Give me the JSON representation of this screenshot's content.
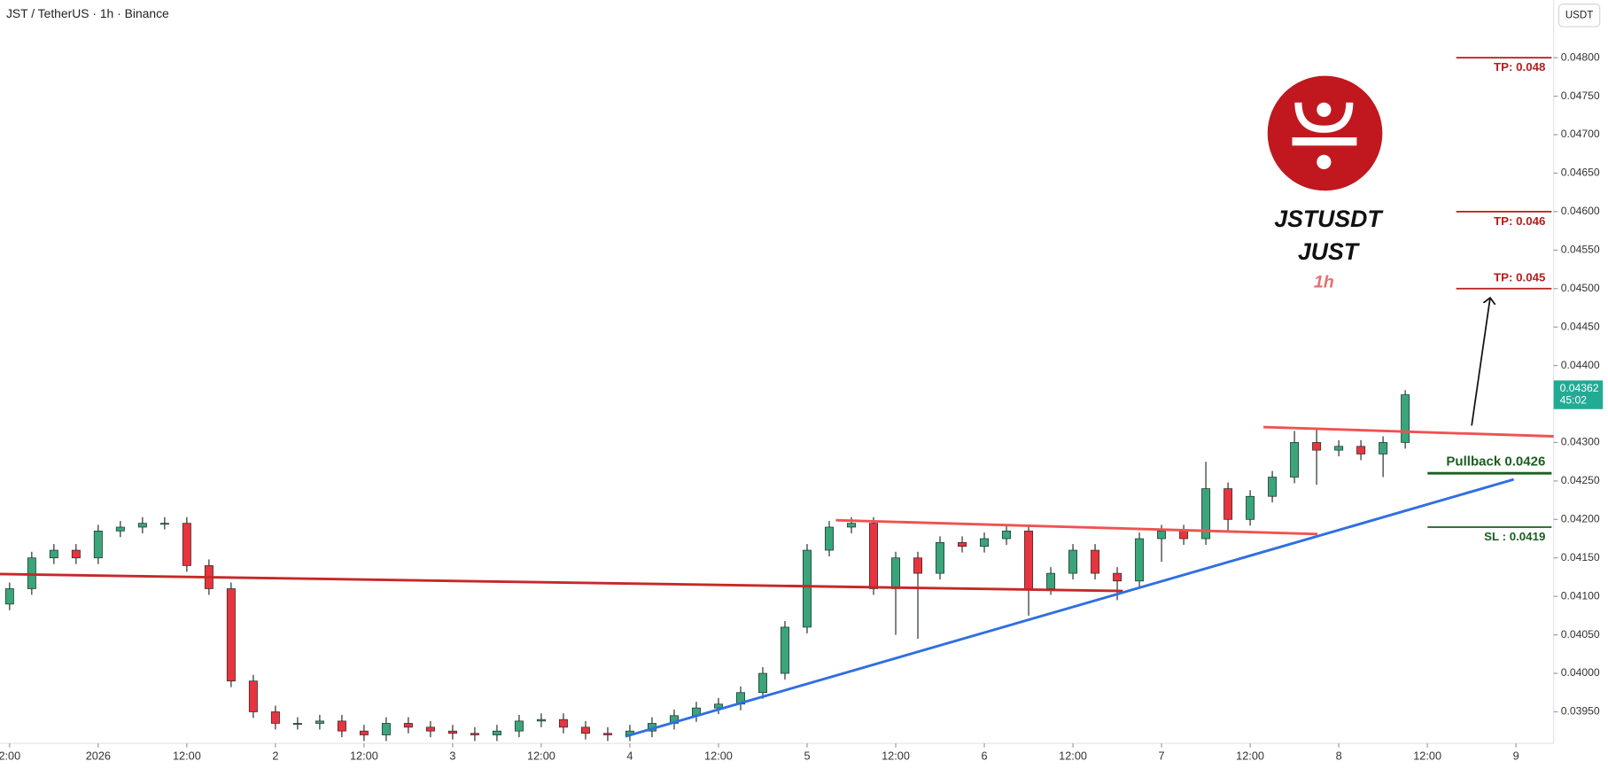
{
  "chart_data": {
    "type": "candlestick",
    "title": "JST / TetherUS · 1h · Binance",
    "currency_button": "USDT",
    "up_color": "#3aa57a",
    "down_color": "#e8343f",
    "candles": {
      "x": [
        -12,
        -9,
        -6,
        -3,
        0,
        3,
        6,
        9,
        12,
        15,
        18,
        21,
        24,
        27,
        30,
        33,
        36,
        39,
        42,
        45,
        48,
        51,
        54,
        57,
        60,
        63,
        66,
        69,
        72,
        75,
        78,
        81,
        84,
        87,
        90,
        93,
        96,
        99,
        102,
        105,
        108,
        111,
        114,
        117,
        120,
        123,
        126,
        129,
        132,
        135,
        138,
        141,
        144,
        147,
        150,
        153,
        156,
        159,
        162,
        165,
        168,
        171,
        174,
        177
      ],
      "open": [
        0.0409,
        0.0411,
        0.0415,
        0.0416,
        0.0415,
        0.04185,
        0.0419,
        0.04195,
        0.04195,
        0.0414,
        0.0411,
        0.0399,
        0.0395,
        0.03935,
        0.03935,
        0.03938,
        0.03925,
        0.0392,
        0.03935,
        0.0393,
        0.03925,
        0.03922,
        0.0392,
        0.03925,
        0.03938,
        0.0394,
        0.0393,
        0.03922,
        0.0392,
        0.03925,
        0.03935,
        0.03945,
        0.03955,
        0.0396,
        0.03975,
        0.04,
        0.0406,
        0.0416,
        0.0419,
        0.04195,
        0.0411,
        0.0415,
        0.0413,
        0.0417,
        0.04165,
        0.04175,
        0.04185,
        0.0411,
        0.0413,
        0.0416,
        0.0413,
        0.0412,
        0.04175,
        0.04185,
        0.04175,
        0.0424,
        0.042,
        0.0423,
        0.04255,
        0.043,
        0.0429,
        0.04295,
        0.04285,
        0.043
      ],
      "high": [
        0.04118,
        0.04158,
        0.04168,
        0.04168,
        0.04193,
        0.04198,
        0.04203,
        0.04203,
        0.04203,
        0.04148,
        0.04118,
        0.03998,
        0.03958,
        0.03943,
        0.03946,
        0.03946,
        0.03933,
        0.03943,
        0.03943,
        0.03938,
        0.03933,
        0.0393,
        0.03933,
        0.03946,
        0.03948,
        0.03948,
        0.03938,
        0.0393,
        0.03933,
        0.03943,
        0.03953,
        0.03963,
        0.03968,
        0.03983,
        0.04008,
        0.04068,
        0.04168,
        0.04198,
        0.04203,
        0.04203,
        0.04158,
        0.04158,
        0.04178,
        0.04178,
        0.04183,
        0.04193,
        0.04193,
        0.04138,
        0.04168,
        0.04168,
        0.04138,
        0.04183,
        0.04193,
        0.04193,
        0.04275,
        0.04248,
        0.04238,
        0.04263,
        0.04315,
        0.04318,
        0.04303,
        0.04303,
        0.04308,
        0.04368
      ],
      "low": [
        0.04082,
        0.04102,
        0.04142,
        0.04142,
        0.04142,
        0.04177,
        0.04182,
        0.04187,
        0.04132,
        0.04102,
        0.03982,
        0.03942,
        0.03927,
        0.03927,
        0.03927,
        0.03917,
        0.03912,
        0.03912,
        0.03922,
        0.03917,
        0.03914,
        0.03912,
        0.03912,
        0.03917,
        0.0393,
        0.03922,
        0.03914,
        0.03912,
        0.03912,
        0.03917,
        0.03927,
        0.03937,
        0.03947,
        0.03952,
        0.03967,
        0.03992,
        0.04052,
        0.04152,
        0.04182,
        0.04102,
        0.0405,
        0.04045,
        0.04122,
        0.04157,
        0.04157,
        0.04167,
        0.04075,
        0.04102,
        0.04122,
        0.04122,
        0.04095,
        0.04112,
        0.04145,
        0.04167,
        0.04167,
        0.04185,
        0.04192,
        0.04222,
        0.04247,
        0.04245,
        0.04282,
        0.04277,
        0.04255,
        0.04292
      ],
      "close": [
        0.0411,
        0.0415,
        0.0416,
        0.0415,
        0.04185,
        0.0419,
        0.04195,
        0.04195,
        0.0414,
        0.0411,
        0.0399,
        0.0395,
        0.03935,
        0.03935,
        0.03938,
        0.03925,
        0.0392,
        0.03935,
        0.0393,
        0.03925,
        0.03922,
        0.0392,
        0.03925,
        0.03938,
        0.0394,
        0.0393,
        0.03922,
        0.0392,
        0.03925,
        0.03935,
        0.03945,
        0.03955,
        0.0396,
        0.03975,
        0.04,
        0.0406,
        0.0416,
        0.0419,
        0.04195,
        0.0411,
        0.0415,
        0.0413,
        0.0417,
        0.04165,
        0.04175,
        0.04185,
        0.0411,
        0.0413,
        0.0416,
        0.0413,
        0.0412,
        0.04175,
        0.04185,
        0.04175,
        0.0424,
        0.042,
        0.0423,
        0.04255,
        0.043,
        0.0429,
        0.04295,
        0.04285,
        0.043,
        0.04362
      ]
    },
    "xlim": [
      -13.3,
      197.1
    ],
    "xticks": [
      {
        "value": -12,
        "label": "2:00"
      },
      {
        "value": 0,
        "label": "2026"
      },
      {
        "value": 12,
        "label": "12:00"
      },
      {
        "value": 24,
        "label": "2"
      },
      {
        "value": 36,
        "label": "12:00"
      },
      {
        "value": 48,
        "label": "3"
      },
      {
        "value": 60,
        "label": "12:00"
      },
      {
        "value": 72,
        "label": "4"
      },
      {
        "value": 84,
        "label": "12:00"
      },
      {
        "value": 96,
        "label": "5"
      },
      {
        "value": 108,
        "label": "12:00"
      },
      {
        "value": 120,
        "label": "6"
      },
      {
        "value": 132,
        "label": "12:00"
      },
      {
        "value": 144,
        "label": "7"
      },
      {
        "value": 156,
        "label": "12:00"
      },
      {
        "value": 168,
        "label": "8"
      },
      {
        "value": 180,
        "label": "12:00"
      },
      {
        "value": 192,
        "label": "9"
      }
    ],
    "ylim": [
      0.03909,
      0.04875
    ],
    "yticks": [
      {
        "value": 0.0395,
        "label": "0.03950"
      },
      {
        "value": 0.04,
        "label": "0.04000"
      },
      {
        "value": 0.0405,
        "label": "0.04050"
      },
      {
        "value": 0.041,
        "label": "0.04100"
      },
      {
        "value": 0.0415,
        "label": "0.04150"
      },
      {
        "value": 0.042,
        "label": "0.04200"
      },
      {
        "value": 0.0425,
        "label": "0.04250"
      },
      {
        "value": 0.043,
        "label": "0.04300"
      },
      {
        "value": 0.0435,
        "label": "0.04350"
      },
      {
        "value": 0.044,
        "label": "0.04400"
      },
      {
        "value": 0.0445,
        "label": "0.04450"
      },
      {
        "value": 0.045,
        "label": "0.04500"
      },
      {
        "value": 0.0455,
        "label": "0.04550"
      },
      {
        "value": 0.046,
        "label": "0.04600"
      },
      {
        "value": 0.0465,
        "label": "0.04650"
      },
      {
        "value": 0.047,
        "label": "0.04700"
      },
      {
        "value": 0.0475,
        "label": "0.04750"
      },
      {
        "value": 0.048,
        "label": "0.04800"
      }
    ],
    "last_price": 0.04362,
    "countdown": "45:02",
    "last_price_color": "#22ab94",
    "levels": [
      {
        "label": "TP: 0.048",
        "value": 0.048,
        "color": "#b71c1c"
      },
      {
        "label": "TP: 0.046",
        "value": 0.046,
        "color": "#b71c1c"
      },
      {
        "label": "TP: 0.045",
        "value": 0.045,
        "color": "#b71c1c"
      },
      {
        "label": "Pullback 0.0426",
        "value": 0.0426,
        "color": "#1b5e20"
      },
      {
        "label": "SL : 0.0419",
        "value": 0.0419,
        "color": "#1b5e20"
      }
    ],
    "lines": [
      {
        "x": [
          -13.3,
          138.75
        ],
        "y": [
          0.04129,
          0.04107
        ],
        "color": "#c62828"
      },
      {
        "x": [
          99.9,
          165.1
        ],
        "y": [
          0.04199,
          0.04181
        ],
        "color": "#ef5350"
      },
      {
        "x": [
          157.8,
          197.1
        ],
        "y": [
          0.0432,
          0.04308
        ],
        "color": "#ef5350"
      },
      {
        "x": [
          71.4,
          191.7
        ],
        "y": [
          0.03918,
          0.04252
        ],
        "color": "#2f6fe0"
      },
      {
        "x": [
          186,
          188.5
        ],
        "y": [
          0.04322,
          0.04488
        ],
        "color": "#111111"
      }
    ],
    "badge": {
      "symbol": "JSTUSDT",
      "name": "JUST",
      "interval": "1h"
    }
  }
}
